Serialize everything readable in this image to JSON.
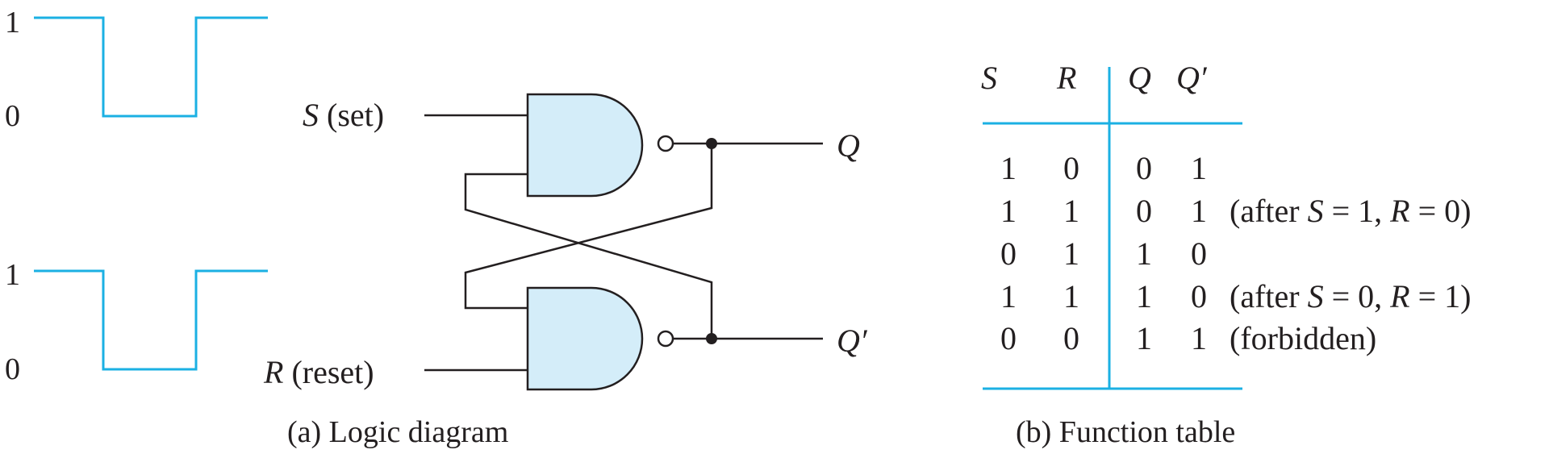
{
  "colors": {
    "accent": "#1bb0e3",
    "gate_fill": "#d4edf9",
    "ink": "#231f20"
  },
  "waveforms": {
    "top": {
      "high_label": "1",
      "low_label": "0",
      "levels": [
        1,
        0,
        1
      ]
    },
    "bottom": {
      "high_label": "1",
      "low_label": "0",
      "levels": [
        1,
        0,
        1
      ]
    }
  },
  "logic_diagram": {
    "caption": "(a) Logic diagram",
    "inputs": {
      "s": {
        "var": "S",
        "desc": "(set)"
      },
      "r": {
        "var": "R",
        "desc": "(reset)"
      }
    },
    "outputs": {
      "q": "Q",
      "q_prime": "Q′"
    },
    "gates": [
      "NAND",
      "NAND"
    ]
  },
  "function_table": {
    "caption": "(b) Function table",
    "headers": [
      "S",
      "R",
      "Q",
      "Q′"
    ],
    "rows": [
      {
        "s": "1",
        "r": "0",
        "q": "0",
        "qp": "1",
        "note_pre": "",
        "note_s": "",
        "note_s_val": "",
        "note_r": "",
        "note_r_val": "",
        "note_text": ""
      },
      {
        "s": "1",
        "r": "1",
        "q": "0",
        "qp": "1",
        "note_pre": "(after ",
        "note_s": "S",
        "note_s_val": " = 1, ",
        "note_r": "R",
        "note_r_val": " = 0)",
        "note_text": ""
      },
      {
        "s": "0",
        "r": "1",
        "q": "1",
        "qp": "0",
        "note_pre": "",
        "note_s": "",
        "note_s_val": "",
        "note_r": "",
        "note_r_val": "",
        "note_text": ""
      },
      {
        "s": "1",
        "r": "1",
        "q": "1",
        "qp": "0",
        "note_pre": "(after ",
        "note_s": "S",
        "note_s_val": " = 0, ",
        "note_r": "R",
        "note_r_val": " = 1)",
        "note_text": ""
      },
      {
        "s": "0",
        "r": "0",
        "q": "1",
        "qp": "1",
        "note_pre": "",
        "note_s": "",
        "note_s_val": "",
        "note_r": "",
        "note_r_val": "",
        "note_text": "(forbidden)"
      }
    ]
  }
}
